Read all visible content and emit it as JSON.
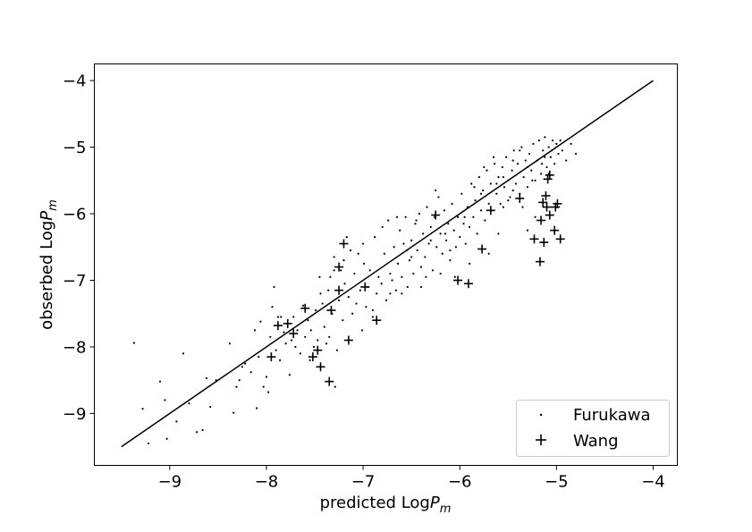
{
  "chart_data": {
    "type": "scatter",
    "xlabel": {
      "text": "predicted Log",
      "var": "P",
      "sub": "m"
    },
    "ylabel": {
      "text": "obserbed Log",
      "var": "P",
      "sub": "m"
    },
    "xlim": [
      -9.78,
      -3.75
    ],
    "ylim": [
      -9.78,
      -3.75
    ],
    "xticks": [
      -9,
      -8,
      -7,
      -6,
      -5,
      -4
    ],
    "yticks": [
      -9,
      -8,
      -7,
      -6,
      -5,
      -4
    ],
    "xtick_labels": [
      "−9",
      "−8",
      "−7",
      "−6",
      "−5",
      "−4"
    ],
    "ytick_labels": [
      "−9",
      "−8",
      "−7",
      "−6",
      "−5",
      "−4"
    ],
    "grid": false,
    "legend_position": "bottom-right",
    "reference_line": {
      "x": [
        -9.5,
        -4.0
      ],
      "y": [
        -9.5,
        -4.0
      ],
      "color": "#000000"
    },
    "series": [
      {
        "name": "Furukawa",
        "marker": "dot",
        "color": "#000000",
        "points": [
          [
            -9.37,
            -7.94
          ],
          [
            -9.28,
            -8.93
          ],
          [
            -9.22,
            -9.45
          ],
          [
            -9.1,
            -8.52
          ],
          [
            -9.05,
            -8.8
          ],
          [
            -9.03,
            -9.38
          ],
          [
            -8.93,
            -9.12
          ],
          [
            -8.86,
            -8.1
          ],
          [
            -8.8,
            -8.85
          ],
          [
            -8.72,
            -9.28
          ],
          [
            -8.66,
            -9.25
          ],
          [
            -8.62,
            -8.47
          ],
          [
            -8.58,
            -8.9
          ],
          [
            -8.52,
            -8.5
          ],
          [
            -8.38,
            -7.95
          ],
          [
            -8.34,
            -8.99
          ],
          [
            -8.31,
            -8.6
          ],
          [
            -8.28,
            -8.5
          ],
          [
            -8.22,
            -8.25
          ],
          [
            -8.16,
            -8.38
          ],
          [
            -8.1,
            -8.92
          ],
          [
            -8.08,
            -8.15
          ],
          [
            -8.06,
            -7.62
          ],
          [
            -8.03,
            -8.6
          ],
          [
            -8.0,
            -8.45
          ],
          [
            -7.98,
            -8.68
          ],
          [
            -7.96,
            -7.85
          ],
          [
            -7.94,
            -7.4
          ],
          [
            -7.92,
            -7.1
          ],
          [
            -7.9,
            -8.05
          ],
          [
            -7.88,
            -7.55
          ],
          [
            -7.86,
            -8.2
          ],
          [
            -7.82,
            -7.78
          ],
          [
            -7.8,
            -7.95
          ],
          [
            -7.76,
            -8.42
          ],
          [
            -7.74,
            -7.9
          ],
          [
            -7.72,
            -7.55
          ],
          [
            -7.68,
            -7.75
          ],
          [
            -7.65,
            -8.1
          ],
          [
            -7.62,
            -7.38
          ],
          [
            -7.6,
            -7.85
          ],
          [
            -7.57,
            -7.6
          ],
          [
            -7.54,
            -7.75
          ],
          [
            -7.51,
            -8.0
          ],
          [
            -7.49,
            -7.45
          ],
          [
            -7.47,
            -7.9
          ],
          [
            -7.44,
            -7.2
          ],
          [
            -7.42,
            -7.35
          ],
          [
            -7.4,
            -7.7
          ],
          [
            -7.38,
            -7.95
          ],
          [
            -7.36,
            -7.15
          ],
          [
            -7.34,
            -6.95
          ],
          [
            -7.32,
            -7.5
          ],
          [
            -7.3,
            -6.65
          ],
          [
            -7.29,
            -8.6
          ],
          [
            -7.27,
            -8.05
          ],
          [
            -7.25,
            -7.3
          ],
          [
            -7.23,
            -6.85
          ],
          [
            -7.21,
            -7.6
          ],
          [
            -7.19,
            -7.05
          ],
          [
            -7.17,
            -6.35
          ],
          [
            -7.15,
            -7.25
          ],
          [
            -7.13,
            -6.55
          ],
          [
            -7.11,
            -7.5
          ],
          [
            -7.09,
            -6.9
          ],
          [
            -7.07,
            -7.35
          ],
          [
            -7.05,
            -6.6
          ],
          [
            -7.03,
            -7.15
          ],
          [
            -7.01,
            -7.75
          ],
          [
            -6.99,
            -6.75
          ],
          [
            -6.97,
            -7.4
          ],
          [
            -6.95,
            -7.1
          ],
          [
            -6.93,
            -6.85
          ],
          [
            -6.9,
            -7.55
          ],
          [
            -6.88,
            -6.35
          ],
          [
            -6.86,
            -7.2
          ],
          [
            -6.84,
            -6.95
          ],
          [
            -6.81,
            -7.05
          ],
          [
            -6.78,
            -6.6
          ],
          [
            -6.76,
            -7.3
          ],
          [
            -6.74,
            -6.1
          ],
          [
            -6.72,
            -6.9
          ],
          [
            -6.7,
            -7.0
          ],
          [
            -6.68,
            -6.5
          ],
          [
            -6.66,
            -7.15
          ],
          [
            -6.64,
            -6.75
          ],
          [
            -6.62,
            -6.25
          ],
          [
            -6.6,
            -6.95
          ],
          [
            -6.58,
            -6.45
          ],
          [
            -6.56,
            -6.05
          ],
          [
            -6.54,
            -7.1
          ],
          [
            -6.52,
            -6.7
          ],
          [
            -6.5,
            -6.4
          ],
          [
            -6.48,
            -6.9
          ],
          [
            -6.46,
            -6.15
          ],
          [
            -6.44,
            -6.55
          ],
          [
            -6.42,
            -6.0
          ],
          [
            -6.4,
            -6.8
          ],
          [
            -6.38,
            -6.3
          ],
          [
            -6.36,
            -6.65
          ],
          [
            -6.34,
            -5.9
          ],
          [
            -6.32,
            -6.45
          ],
          [
            -6.3,
            -6.2
          ],
          [
            -6.28,
            -6.85
          ],
          [
            -6.26,
            -6.05
          ],
          [
            -6.24,
            -6.5
          ],
          [
            -6.22,
            -5.75
          ],
          [
            -6.2,
            -6.3
          ],
          [
            -6.18,
            -6.6
          ],
          [
            -6.16,
            -5.95
          ],
          [
            -6.14,
            -6.4
          ],
          [
            -6.12,
            -6.15
          ],
          [
            -6.1,
            -6.7
          ],
          [
            -6.08,
            -5.85
          ],
          [
            -6.06,
            -6.25
          ],
          [
            -6.04,
            -6.5
          ],
          [
            -6.02,
            -6.05
          ],
          [
            -6.0,
            -6.35
          ],
          [
            -5.98,
            -5.7
          ],
          [
            -5.96,
            -6.15
          ],
          [
            -5.94,
            -6.45
          ],
          [
            -5.92,
            -5.9
          ],
          [
            -5.9,
            -6.2
          ],
          [
            -5.88,
            -5.55
          ],
          [
            -5.86,
            -6.05
          ],
          [
            -5.84,
            -5.8
          ],
          [
            -5.82,
            -6.3
          ],
          [
            -5.8,
            -5.45
          ],
          [
            -5.78,
            -5.95
          ],
          [
            -5.76,
            -5.65
          ],
          [
            -5.74,
            -6.1
          ],
          [
            -5.72,
            -5.35
          ],
          [
            -5.7,
            -5.85
          ],
          [
            -5.68,
            -5.55
          ],
          [
            -5.66,
            -5.95
          ],
          [
            -5.64,
            -5.25
          ],
          [
            -5.62,
            -5.7
          ],
          [
            -5.6,
            -5.45
          ],
          [
            -5.58,
            -5.85
          ],
          [
            -5.56,
            -5.3
          ],
          [
            -5.54,
            -5.6
          ],
          [
            -5.52,
            -5.15
          ],
          [
            -5.5,
            -5.5
          ],
          [
            -5.48,
            -5.75
          ],
          [
            -5.46,
            -5.35
          ],
          [
            -5.44,
            -5.05
          ],
          [
            -5.42,
            -5.55
          ],
          [
            -5.4,
            -5.25
          ],
          [
            -5.38,
            -5.7
          ],
          [
            -5.36,
            -5.0
          ],
          [
            -5.34,
            -5.45
          ],
          [
            -5.32,
            -5.2
          ],
          [
            -5.3,
            -5.6
          ],
          [
            -5.28,
            -5.1
          ],
          [
            -5.26,
            -5.35
          ],
          [
            -5.24,
            -4.95
          ],
          [
            -5.22,
            -5.5
          ],
          [
            -5.2,
            -5.2
          ],
          [
            -5.18,
            -4.9
          ],
          [
            -5.16,
            -5.4
          ],
          [
            -5.14,
            -5.05
          ],
          [
            -5.12,
            -4.85
          ],
          [
            -5.1,
            -5.3
          ],
          [
            -5.08,
            -5.0
          ],
          [
            -5.06,
            -5.15
          ],
          [
            -5.04,
            -4.9
          ],
          [
            -5.02,
            -5.25
          ],
          [
            -5.0,
            -4.95
          ],
          [
            -4.98,
            -5.1
          ],
          [
            -4.96,
            -4.9
          ],
          [
            -4.94,
            -5.05
          ],
          [
            -4.9,
            -5.2
          ],
          [
            -4.85,
            -4.95
          ],
          [
            -4.8,
            -5.1
          ],
          [
            -5.3,
            -6.25
          ],
          [
            -5.35,
            -5.9
          ],
          [
            -5.22,
            -6.05
          ],
          [
            -5.45,
            -5.65
          ],
          [
            -5.6,
            -6.3
          ],
          [
            -5.7,
            -6.6
          ],
          [
            -5.9,
            -6.75
          ],
          [
            -6.05,
            -6.95
          ],
          [
            -6.2,
            -6.9
          ],
          [
            -6.1,
            -6.55
          ],
          [
            -5.55,
            -5.45
          ],
          [
            -5.65,
            -5.15
          ],
          [
            -5.75,
            -5.3
          ],
          [
            -5.85,
            -5.6
          ],
          [
            -6.25,
            -5.65
          ],
          [
            -6.45,
            -6.1
          ],
          [
            -6.65,
            -6.05
          ],
          [
            -6.8,
            -6.2
          ],
          [
            -7.0,
            -6.45
          ],
          [
            -7.2,
            -6.7
          ],
          [
            -7.35,
            -7.85
          ],
          [
            -7.55,
            -8.2
          ],
          [
            -7.7,
            -8.0
          ],
          [
            -7.85,
            -7.55
          ],
          [
            -8.12,
            -7.75
          ],
          [
            -8.25,
            -8.3
          ],
          [
            -7.45,
            -6.95
          ],
          [
            -7.3,
            -6.85
          ],
          [
            -6.9,
            -7.45
          ],
          [
            -6.72,
            -7.2
          ],
          [
            -6.6,
            -7.2
          ],
          [
            -6.4,
            -7.1
          ],
          [
            -6.35,
            -6.95
          ],
          [
            -6.5,
            -6.65
          ],
          [
            -5.45,
            -5.2
          ],
          [
            -5.38,
            -5.05
          ],
          [
            -5.3,
            -5.3
          ],
          [
            -5.25,
            -5.5
          ],
          [
            -5.15,
            -5.25
          ],
          [
            -5.12,
            -5.15
          ],
          [
            -5.05,
            -5.05
          ],
          [
            -5.08,
            -5.4
          ],
          [
            -5.55,
            -5.9
          ],
          [
            -5.5,
            -5.8
          ],
          [
            -5.62,
            -5.55
          ],
          [
            -5.78,
            -5.7
          ],
          [
            -5.95,
            -6.05
          ],
          [
            -6.15,
            -6.3
          ],
          [
            -6.3,
            -6.4
          ],
          [
            -6.55,
            -6.55
          ]
        ]
      },
      {
        "name": "Wang",
        "marker": "plus",
        "color": "#000000",
        "points": [
          [
            -7.95,
            -8.15
          ],
          [
            -7.88,
            -7.68
          ],
          [
            -7.78,
            -7.65
          ],
          [
            -7.72,
            -7.8
          ],
          [
            -7.6,
            -7.42
          ],
          [
            -7.52,
            -8.15
          ],
          [
            -7.47,
            -8.05
          ],
          [
            -7.44,
            -8.3
          ],
          [
            -7.35,
            -8.52
          ],
          [
            -7.33,
            -7.45
          ],
          [
            -7.25,
            -7.15
          ],
          [
            -7.25,
            -6.8
          ],
          [
            -7.2,
            -6.45
          ],
          [
            -7.15,
            -7.9
          ],
          [
            -6.98,
            -7.1
          ],
          [
            -6.86,
            -7.6
          ],
          [
            -6.25,
            -6.02
          ],
          [
            -6.02,
            -7.0
          ],
          [
            -5.91,
            -7.05
          ],
          [
            -5.77,
            -6.53
          ],
          [
            -5.68,
            -5.95
          ],
          [
            -5.38,
            -5.77
          ],
          [
            -5.23,
            -6.38
          ],
          [
            -5.17,
            -6.72
          ],
          [
            -5.16,
            -6.1
          ],
          [
            -5.14,
            -5.83
          ],
          [
            -5.13,
            -6.43
          ],
          [
            -5.11,
            -5.73
          ],
          [
            -5.09,
            -5.48
          ],
          [
            -5.07,
            -5.42
          ],
          [
            -5.07,
            -6.02
          ],
          [
            -5.02,
            -6.25
          ],
          [
            -5.01,
            -5.9
          ],
          [
            -4.99,
            -5.85
          ],
          [
            -4.96,
            -6.38
          ],
          [
            -5.1,
            -5.9
          ]
        ]
      }
    ]
  }
}
